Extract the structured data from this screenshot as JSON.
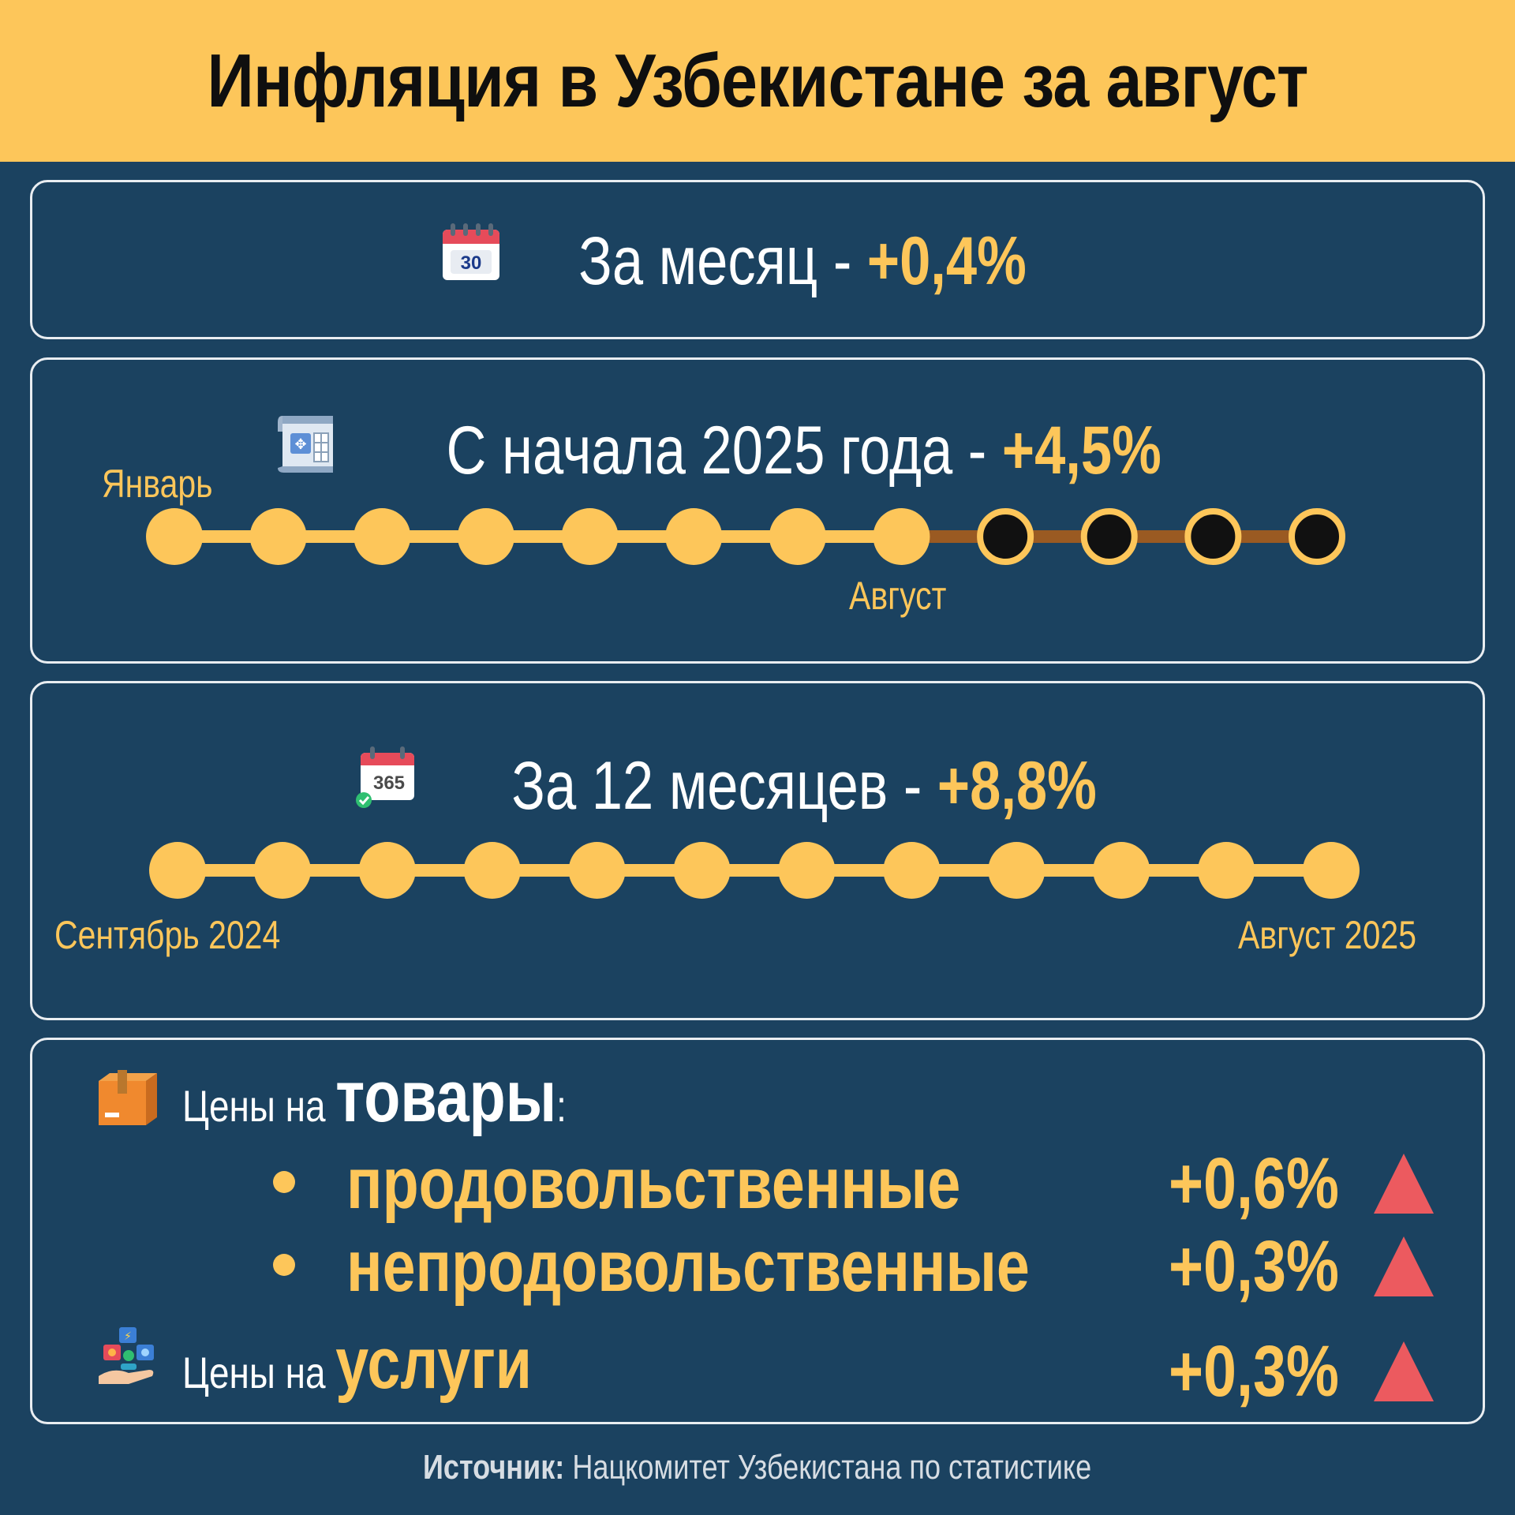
{
  "title": "Инфляция в Узбекистане за август",
  "monthly": {
    "label": "За месяц - ",
    "value": "+0,4%",
    "icon": "calendar-30-icon",
    "icon_text": "30"
  },
  "ytd": {
    "label": "С начала 2025 года - ",
    "value": "+4,5%",
    "icon": "scroll-calendar-icon",
    "start_label": "Январь",
    "current_label": "Август",
    "months_total": 12,
    "months_elapsed": 8
  },
  "yoy": {
    "label": "За 12 месяцев - ",
    "value": "+8,8%",
    "icon": "calendar-365-icon",
    "icon_text": "365",
    "months_total": 12,
    "start_label": "Сентябрь 2024",
    "end_label": "Август 2025"
  },
  "prices": {
    "goods_prefix": "Цены на ",
    "goods_word": "товары",
    "goods_suffix": ":",
    "food_label": "продовольственные",
    "food_value": "+0,6%",
    "nonfood_label": "непродовольственные",
    "nonfood_value": "+0,3%",
    "services_prefix": "Цены на ",
    "services_word": "услуги",
    "services_value": "+0,3%"
  },
  "source": {
    "label": "Источник:",
    "text": " Нацкомитет Узбекистана по статистике"
  },
  "colors": {
    "accent": "#fdc65a",
    "background": "#1b4260",
    "up_arrow": "#ec5a5f",
    "future_line": "#9a5a22"
  }
}
